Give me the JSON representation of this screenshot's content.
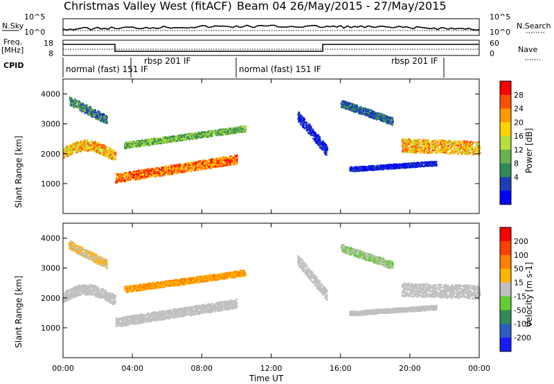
{
  "header": {
    "title": "Christmas Valley West (fitACF)",
    "beam_info": "Beam 04 26/May/2015 - 27/May/2015"
  },
  "noise_panel": {
    "left_label": "N.Sky",
    "right_label": "N.Search",
    "left_ticks": [
      "10^5",
      "10^0"
    ],
    "right_ticks": [
      "10^5",
      "10^0"
    ]
  },
  "freq_panel": {
    "left_label": "Freq.",
    "left_unit": "[MHz]",
    "right_label": "Nave",
    "left_ticks": [
      "18",
      "8"
    ],
    "right_ticks": [
      "60",
      "0"
    ]
  },
  "cpid": {
    "label": "CPID",
    "segments": [
      "normal (fast) 151 IF",
      "rbsp 201 IF",
      "normal (fast) 151 IF",
      "rbsp 201 IF"
    ]
  },
  "power_panel": {
    "ylabel": "Slant Range [km]",
    "yticks": [
      "4000",
      "3000",
      "2000",
      "1000"
    ],
    "colorbar_label": "Power [dB]",
    "colorbar_ticks": [
      "28",
      "24",
      "20",
      "16",
      "12",
      "8",
      "4"
    ],
    "colors": [
      "#0000ff",
      "#1e3cb4",
      "#2e8b57",
      "#6ab04c",
      "#b4e03c",
      "#ffd200",
      "#ff9a00",
      "#ff5000",
      "#ff0000"
    ]
  },
  "velocity_panel": {
    "ylabel": "Slant Range [km]",
    "yticks": [
      "4000",
      "3000",
      "2000",
      "1000"
    ],
    "colorbar_label": "Velocity [m s-1]",
    "colorbar_ticks": [
      "200",
      "100",
      "50",
      "15",
      "-15",
      "-50",
      "-100",
      "-200"
    ],
    "colors": [
      "#1a1aff",
      "#2e5cc0",
      "#2e8b57",
      "#66cc33",
      "#c0c0c0",
      "#ffb400",
      "#ff8000",
      "#ff4000",
      "#ff0000"
    ]
  },
  "x_axis": {
    "label": "Time UT",
    "ticks": [
      "00:00",
      "04:00",
      "08:00",
      "12:00",
      "16:00",
      "20:00",
      "00:00"
    ]
  }
}
